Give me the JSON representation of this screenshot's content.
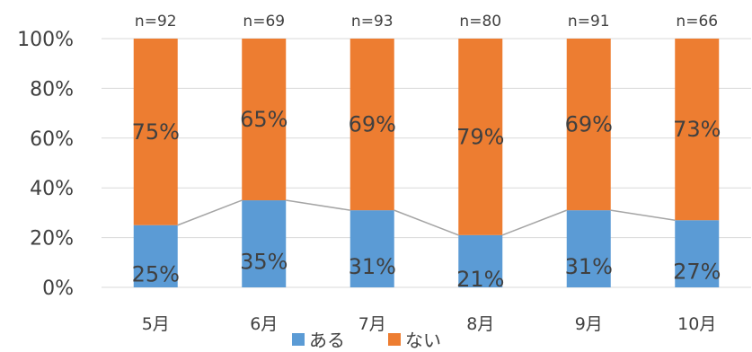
{
  "chart_data": {
    "type": "bar",
    "stacked": true,
    "percent": true,
    "categories": [
      "5月",
      "6月",
      "7月",
      "8月",
      "9月",
      "10月"
    ],
    "n_labels": [
      "n=92",
      "n=69",
      "n=93",
      "n=80",
      "n=91",
      "n=66"
    ],
    "series": [
      {
        "name": "ある",
        "values": [
          25,
          35,
          31,
          21,
          31,
          27
        ],
        "labels": [
          "25%",
          "35%",
          "31%",
          "21%",
          "31%",
          "27%"
        ],
        "color": "#5b9bd5"
      },
      {
        "name": "ない",
        "values": [
          75,
          65,
          69,
          79,
          69,
          73
        ],
        "labels": [
          "75%",
          "65%",
          "69%",
          "79%",
          "69%",
          "73%"
        ],
        "color": "#ed7d31"
      }
    ],
    "ylim": [
      0,
      100
    ],
    "yticks": [
      "0%",
      "20%",
      "40%",
      "60%",
      "80%",
      "100%"
    ],
    "grid": true,
    "series_lines": true,
    "series_line_color": "#a5a5a5",
    "legend_position": "bottom"
  }
}
